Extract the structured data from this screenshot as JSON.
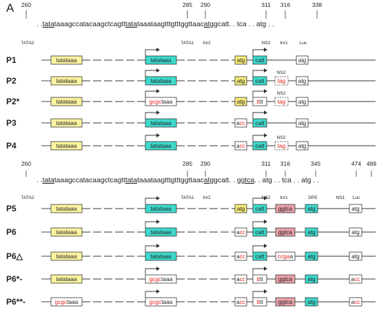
{
  "panel_letter": "A",
  "colors": {
    "tata2_fill": "#fbf3a0",
    "tata1_fill": "#3dd9cc",
    "ns2_fill": "#f7ec7a",
    "inr1_fill": "#3dd9cc",
    "dpe_fill": "#e8a0a8",
    "ns1_fill": "#3dd9cc",
    "blank_fill": "#ffffff",
    "mutation_red": "#e3201b",
    "line": "#333333"
  },
  "sections": [
    {
      "header": {
        "sequence_parts": [
          ". .",
          "tata",
          "taaagccatacaagctcagtt",
          "tata",
          "taaataagtttgtttggttaac",
          "atg",
          "gcatt",
          ". . tca . . atg . ."
        ],
        "positions": [
          "260",
          "285",
          "290",
          "311",
          "316",
          "338"
        ],
        "elements": [
          "TATA2",
          "TATA1",
          "Inr2",
          "NS2",
          "Inr1",
          "Luc"
        ]
      },
      "rows": [
        {
          "label": "P1",
          "boxes": [
            {
              "segs": [
                {
                  "t": "tatataaa",
                  "m": false
                }
              ],
              "fill": "tata2"
            },
            {
              "segs": [
                {
                  "t": "tatataaa",
                  "m": false
                }
              ],
              "fill": "tata1"
            },
            {
              "segs": [
                {
                  "t": "atg",
                  "m": false
                }
              ],
              "fill": "ns2"
            },
            {
              "segs": [
                {
                  "t": "catt",
                  "m": false
                }
              ],
              "fill": "inr1"
            },
            {
              "segs": [
                {
                  "t": "atg",
                  "m": false
                }
              ],
              "fill": "blank"
            }
          ]
        },
        {
          "label": "P2",
          "ns2_label": "NS2",
          "boxes": [
            {
              "segs": [
                {
                  "t": "tatataaa",
                  "m": false
                }
              ],
              "fill": "tata2"
            },
            {
              "segs": [
                {
                  "t": "tatataaa",
                  "m": false
                }
              ],
              "fill": "tata1"
            },
            {
              "segs": [
                {
                  "t": "atg",
                  "m": false
                }
              ],
              "fill": "ns2"
            },
            {
              "segs": [
                {
                  "t": "catt",
                  "m": false
                }
              ],
              "fill": "inr1"
            },
            {
              "segs": [
                {
                  "t": "tag",
                  "m": true
                }
              ],
              "fill": "blank",
              "dashed": true
            },
            {
              "segs": [
                {
                  "t": "atg",
                  "m": false
                }
              ],
              "fill": "blank"
            }
          ]
        },
        {
          "label": "P2*",
          "ns2_label": "NS2",
          "boxes": [
            {
              "segs": [
                {
                  "t": "tatataaa",
                  "m": false
                }
              ],
              "fill": "tata2"
            },
            {
              "segs": [
                {
                  "t": "gcgc",
                  "m": true
                },
                {
                  "t": "taaa",
                  "m": false
                }
              ],
              "fill": "blank"
            },
            {
              "segs": [
                {
                  "t": "atg",
                  "m": false
                }
              ],
              "fill": "ns2"
            },
            {
              "segs": [
                {
                  "t": "tt",
                  "m": true
                },
                {
                  "t": "tt",
                  "m": false
                }
              ],
              "fill": "blank"
            },
            {
              "segs": [
                {
                  "t": "tag",
                  "m": true
                }
              ],
              "fill": "blank",
              "dashed": true
            },
            {
              "segs": [
                {
                  "t": "atg",
                  "m": false
                }
              ],
              "fill": "blank"
            }
          ]
        },
        {
          "label": "P3",
          "boxes": [
            {
              "segs": [
                {
                  "t": "tatataaa",
                  "m": false
                }
              ],
              "fill": "tata2"
            },
            {
              "segs": [
                {
                  "t": "tatataaa",
                  "m": false
                }
              ],
              "fill": "tata1"
            },
            {
              "segs": [
                {
                  "t": "a",
                  "m": false
                },
                {
                  "t": "cc",
                  "m": true
                }
              ],
              "fill": "blank"
            },
            {
              "segs": [
                {
                  "t": "catt",
                  "m": false
                }
              ],
              "fill": "inr1"
            },
            {
              "segs": [
                {
                  "t": "atg",
                  "m": false
                }
              ],
              "fill": "blank"
            }
          ]
        },
        {
          "label": "P4",
          "ns2_label": "NS2",
          "boxes": [
            {
              "segs": [
                {
                  "t": "tatataaa",
                  "m": false
                }
              ],
              "fill": "tata2"
            },
            {
              "segs": [
                {
                  "t": "tatataaa",
                  "m": false
                }
              ],
              "fill": "tata1"
            },
            {
              "segs": [
                {
                  "t": "a",
                  "m": false
                },
                {
                  "t": "cc",
                  "m": true
                }
              ],
              "fill": "blank"
            },
            {
              "segs": [
                {
                  "t": "catt",
                  "m": false
                }
              ],
              "fill": "inr1"
            },
            {
              "segs": [
                {
                  "t": "tag",
                  "m": true
                }
              ],
              "fill": "blank",
              "dashed": true
            },
            {
              "segs": [
                {
                  "t": "atg",
                  "m": false
                }
              ],
              "fill": "blank"
            }
          ]
        }
      ]
    },
    {
      "header": {
        "sequence_parts": [
          ". .",
          "tata",
          "taaagccatacaagctcagtt",
          "tata",
          "taaataagtttgtttggttaac",
          "atg",
          "gcatt",
          ". . ",
          "ggtca",
          ". . atg . . tca . . atg . ."
        ],
        "positions": [
          "260",
          "285",
          "290",
          "311",
          "316",
          "345",
          "474",
          "489"
        ],
        "elements": [
          "TATA2",
          "TATA1",
          "Inr2",
          "NS2",
          "Inr1",
          "DPE",
          "NS1",
          "Luc"
        ]
      },
      "rows": [
        {
          "label": "P5",
          "boxes": [
            {
              "segs": [
                {
                  "t": "tatataaa",
                  "m": false
                }
              ],
              "fill": "tata2"
            },
            {
              "segs": [
                {
                  "t": "tatataaa",
                  "m": false
                }
              ],
              "fill": "tata1"
            },
            {
              "segs": [
                {
                  "t": "atg",
                  "m": false
                }
              ],
              "fill": "ns2"
            },
            {
              "segs": [
                {
                  "t": "catt",
                  "m": false
                }
              ],
              "fill": "inr1"
            },
            {
              "segs": [
                {
                  "t": "ggtca",
                  "m": false
                }
              ],
              "fill": "dpe"
            },
            {
              "segs": [
                {
                  "t": "atg",
                  "m": false
                }
              ],
              "fill": "ns1"
            },
            {
              "segs": [
                {
                  "t": "atg",
                  "m": false
                }
              ],
              "fill": "blank"
            }
          ]
        },
        {
          "label": "P6",
          "boxes": [
            {
              "segs": [
                {
                  "t": "tatataaa",
                  "m": false
                }
              ],
              "fill": "tata2"
            },
            {
              "segs": [
                {
                  "t": "tatataaa",
                  "m": false
                }
              ],
              "fill": "tata1"
            },
            {
              "segs": [
                {
                  "t": "a",
                  "m": false
                },
                {
                  "t": "cc",
                  "m": true
                }
              ],
              "fill": "blank"
            },
            {
              "segs": [
                {
                  "t": "catt",
                  "m": false
                }
              ],
              "fill": "inr1"
            },
            {
              "segs": [
                {
                  "t": "ggtca",
                  "m": false
                }
              ],
              "fill": "dpe"
            },
            {
              "segs": [
                {
                  "t": "atg",
                  "m": false
                }
              ],
              "fill": "ns1"
            },
            {
              "segs": [
                {
                  "t": "atg",
                  "m": false
                }
              ],
              "fill": "blank"
            }
          ]
        },
        {
          "label": "P6△",
          "boxes": [
            {
              "segs": [
                {
                  "t": "tatataaa",
                  "m": false
                }
              ],
              "fill": "tata2"
            },
            {
              "segs": [
                {
                  "t": "tatataaa",
                  "m": false
                }
              ],
              "fill": "tata1"
            },
            {
              "segs": [
                {
                  "t": "a",
                  "m": false
                },
                {
                  "t": "cc",
                  "m": true
                }
              ],
              "fill": "blank"
            },
            {
              "segs": [
                {
                  "t": "catt",
                  "m": false
                }
              ],
              "fill": "inr1"
            },
            {
              "segs": [
                {
                  "t": "ccga",
                  "m": true
                },
                {
                  "t": "a",
                  "m": false
                }
              ],
              "fill": "blank"
            },
            {
              "segs": [
                {
                  "t": "atg",
                  "m": false
                }
              ],
              "fill": "ns1"
            },
            {
              "segs": [
                {
                  "t": "atg",
                  "m": false
                }
              ],
              "fill": "blank"
            }
          ]
        },
        {
          "label": "P6*-",
          "boxes": [
            {
              "segs": [
                {
                  "t": "tatataaa",
                  "m": false
                }
              ],
              "fill": "tata2"
            },
            {
              "segs": [
                {
                  "t": "gcgc",
                  "m": true
                },
                {
                  "t": "taaa",
                  "m": false
                }
              ],
              "fill": "blank"
            },
            {
              "segs": [
                {
                  "t": "a",
                  "m": false
                },
                {
                  "t": "cc",
                  "m": true
                }
              ],
              "fill": "blank"
            },
            {
              "segs": [
                {
                  "t": "tt",
                  "m": true
                },
                {
                  "t": "tt",
                  "m": false
                }
              ],
              "fill": "blank"
            },
            {
              "segs": [
                {
                  "t": "ggtca",
                  "m": false
                }
              ],
              "fill": "dpe"
            },
            {
              "segs": [
                {
                  "t": "atg",
                  "m": false
                }
              ],
              "fill": "ns1"
            },
            {
              "segs": [
                {
                  "t": "a",
                  "m": false
                },
                {
                  "t": "cc",
                  "m": true
                }
              ],
              "fill": "blank"
            }
          ]
        },
        {
          "label": "P6**-",
          "boxes": [
            {
              "segs": [
                {
                  "t": "gcgc",
                  "m": true
                },
                {
                  "t": "taaa",
                  "m": false
                }
              ],
              "fill": "blank"
            },
            {
              "segs": [
                {
                  "t": "gcgc",
                  "m": true
                },
                {
                  "t": "taaa",
                  "m": false
                }
              ],
              "fill": "blank"
            },
            {
              "segs": [
                {
                  "t": "a",
                  "m": false
                },
                {
                  "t": "cc",
                  "m": true
                }
              ],
              "fill": "blank"
            },
            {
              "segs": [
                {
                  "t": "tt",
                  "m": true
                },
                {
                  "t": "tt",
                  "m": false
                }
              ],
              "fill": "blank"
            },
            {
              "segs": [
                {
                  "t": "ggtca",
                  "m": false
                }
              ],
              "fill": "dpe"
            },
            {
              "segs": [
                {
                  "t": "atg",
                  "m": false
                }
              ],
              "fill": "ns1"
            },
            {
              "segs": [
                {
                  "t": "a",
                  "m": false
                },
                {
                  "t": "cc",
                  "m": true
                }
              ],
              "fill": "blank"
            }
          ]
        }
      ]
    }
  ]
}
